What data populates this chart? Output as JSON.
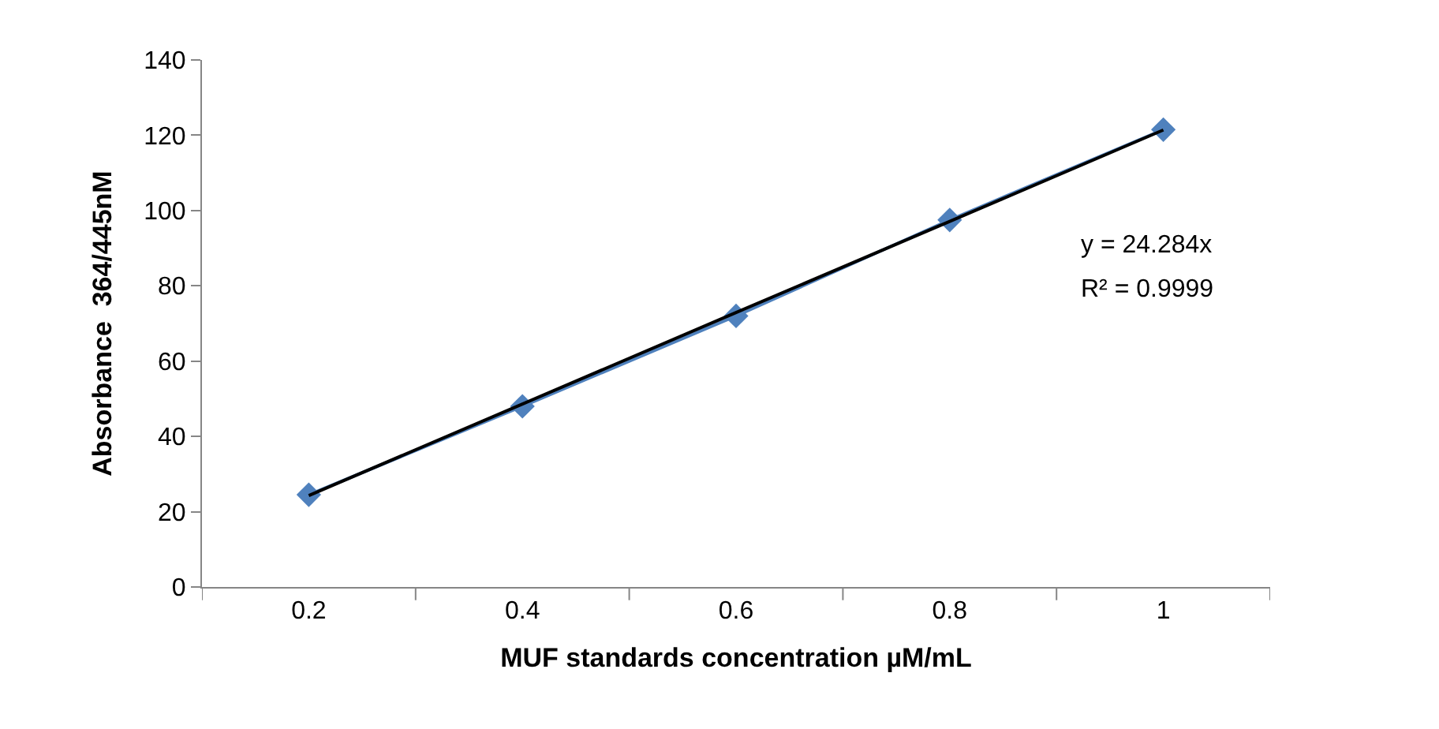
{
  "chart_data": {
    "type": "line",
    "xlabel": "MUF standards concentration µM/mL",
    "ylabel": "Absorbance  364/445nM",
    "categories": [
      "0.2",
      "0.4",
      "0.6",
      "0.8",
      "1"
    ],
    "series": [
      {
        "color": "#4f81bd",
        "values": [
          24.5,
          48,
          72,
          97.5,
          121.5
        ],
        "marker": "diamond"
      },
      {
        "color": "#000000",
        "values": [
          24.3,
          48.6,
          72.9,
          97.1,
          121.4
        ],
        "marker": "none"
      }
    ],
    "ylim": [
      0,
      140
    ],
    "yticks": [
      0,
      20,
      40,
      60,
      80,
      100,
      120,
      140
    ],
    "annotations": [
      "y = 24.284x",
      "R² = 0.9999"
    ]
  }
}
